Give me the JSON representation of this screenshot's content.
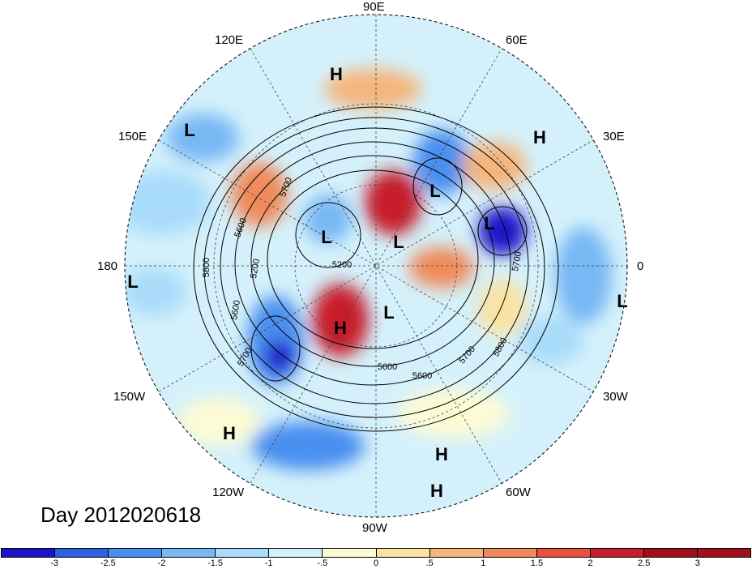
{
  "title": "Day 2012020618",
  "lon_labels": {
    "e90": "90E",
    "e120": "120E",
    "e60": "60E",
    "e150": "150E",
    "e30": "30E",
    "w180": "180",
    "zero": "0",
    "w150": "150W",
    "w30": "30W",
    "w120": "120W",
    "w60": "60W",
    "w90": "90W"
  },
  "pressure_centers": [
    {
      "label": "H"
    },
    {
      "label": "L"
    },
    {
      "label": "H"
    },
    {
      "label": "L"
    },
    {
      "label": "L"
    },
    {
      "label": "L"
    },
    {
      "label": "L"
    },
    {
      "label": "L"
    },
    {
      "label": "L"
    },
    {
      "label": "H"
    },
    {
      "label": "L"
    },
    {
      "label": "H"
    },
    {
      "label": "H"
    },
    {
      "label": "H"
    }
  ],
  "contour_labels": [
    "5700",
    "5600",
    "5200",
    "5800",
    "5200",
    "5600",
    "5700",
    "5600",
    "5700",
    "5800",
    "5700",
    "5600"
  ],
  "colorbar": {
    "colors": [
      "#1a14c8",
      "#2d5fe0",
      "#4a8ff0",
      "#78b8f5",
      "#a9dcfa",
      "#d4f1fb",
      "#fdfbd4",
      "#fbe2a2",
      "#f5b57c",
      "#f08a5a",
      "#e6503d",
      "#c81e2a",
      "#a0101c"
    ],
    "labels": [
      "-3",
      "-2.5",
      "-2",
      "-1.5",
      "-1",
      "-.5",
      "0",
      ".5",
      "1",
      "1.5",
      "2",
      "2.5",
      "3"
    ]
  }
}
